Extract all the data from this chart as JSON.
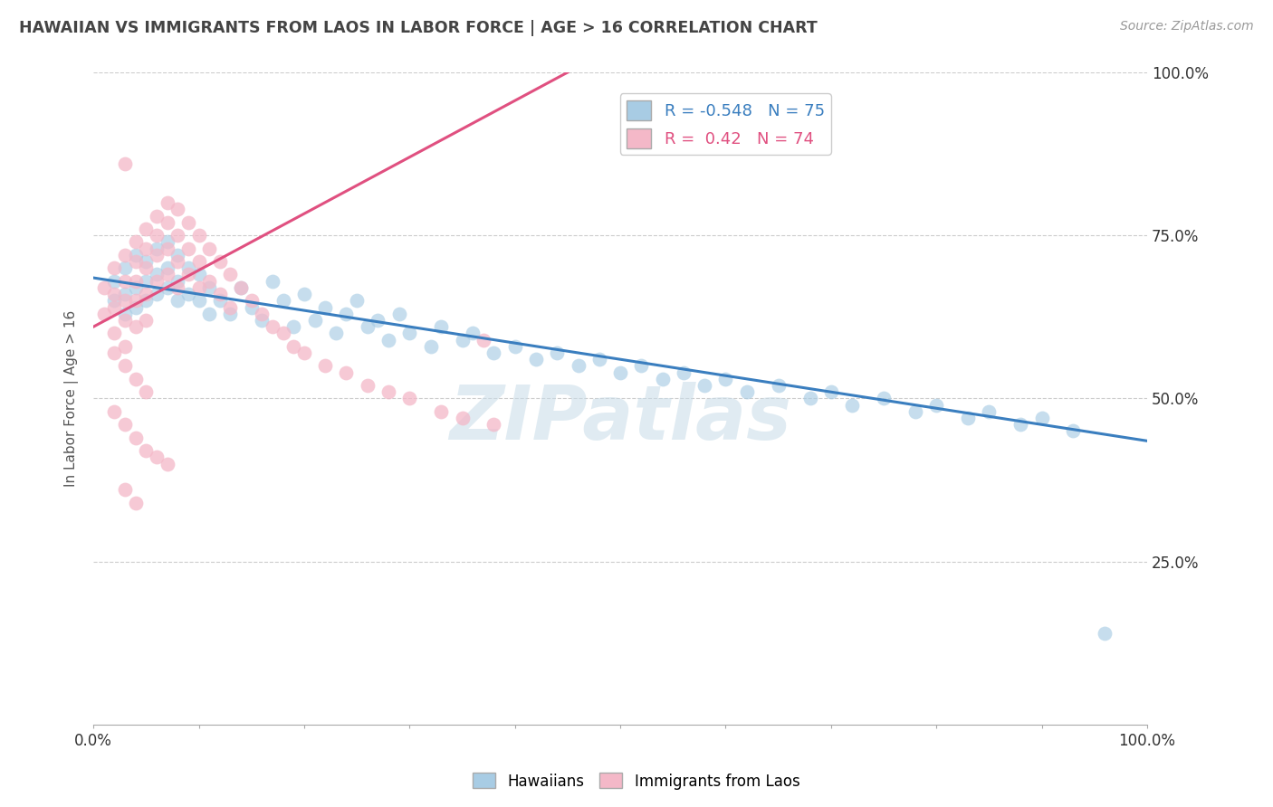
{
  "title": "HAWAIIAN VS IMMIGRANTS FROM LAOS IN LABOR FORCE | AGE > 16 CORRELATION CHART",
  "source": "Source: ZipAtlas.com",
  "ylabel": "In Labor Force | Age > 16",
  "watermark": "ZIPatlas",
  "blue_R": -0.548,
  "blue_N": 75,
  "pink_R": 0.42,
  "pink_N": 74,
  "blue_color": "#a8cce4",
  "pink_color": "#f4b8c8",
  "blue_line_color": "#3a7ebf",
  "pink_line_color": "#e05080",
  "legend_blue_label": "Hawaiians",
  "legend_pink_label": "Immigrants from Laos",
  "background_color": "#ffffff",
  "watermark_color": "#c8dce8",
  "title_color": "#444444",
  "source_color": "#999999",
  "ylabel_color": "#555555",
  "grid_color": "#cccccc",
  "tick_color": "#333333",
  "blue_scatter_x": [
    0.02,
    0.02,
    0.03,
    0.03,
    0.03,
    0.04,
    0.04,
    0.04,
    0.05,
    0.05,
    0.05,
    0.06,
    0.06,
    0.06,
    0.07,
    0.07,
    0.07,
    0.08,
    0.08,
    0.08,
    0.09,
    0.09,
    0.1,
    0.1,
    0.11,
    0.11,
    0.12,
    0.13,
    0.14,
    0.15,
    0.16,
    0.17,
    0.18,
    0.19,
    0.2,
    0.21,
    0.22,
    0.23,
    0.24,
    0.25,
    0.26,
    0.27,
    0.28,
    0.29,
    0.3,
    0.32,
    0.33,
    0.35,
    0.36,
    0.38,
    0.4,
    0.42,
    0.44,
    0.46,
    0.48,
    0.5,
    0.52,
    0.54,
    0.56,
    0.58,
    0.6,
    0.62,
    0.65,
    0.68,
    0.7,
    0.72,
    0.75,
    0.78,
    0.8,
    0.83,
    0.85,
    0.88,
    0.9,
    0.93,
    0.96
  ],
  "blue_scatter_y": [
    0.68,
    0.65,
    0.7,
    0.66,
    0.63,
    0.72,
    0.67,
    0.64,
    0.71,
    0.68,
    0.65,
    0.73,
    0.69,
    0.66,
    0.74,
    0.7,
    0.67,
    0.72,
    0.68,
    0.65,
    0.7,
    0.66,
    0.69,
    0.65,
    0.67,
    0.63,
    0.65,
    0.63,
    0.67,
    0.64,
    0.62,
    0.68,
    0.65,
    0.61,
    0.66,
    0.62,
    0.64,
    0.6,
    0.63,
    0.65,
    0.61,
    0.62,
    0.59,
    0.63,
    0.6,
    0.58,
    0.61,
    0.59,
    0.6,
    0.57,
    0.58,
    0.56,
    0.57,
    0.55,
    0.56,
    0.54,
    0.55,
    0.53,
    0.54,
    0.52,
    0.53,
    0.51,
    0.52,
    0.5,
    0.51,
    0.49,
    0.5,
    0.48,
    0.49,
    0.47,
    0.48,
    0.46,
    0.47,
    0.45,
    0.14
  ],
  "pink_scatter_x": [
    0.01,
    0.01,
    0.02,
    0.02,
    0.02,
    0.02,
    0.03,
    0.03,
    0.03,
    0.03,
    0.03,
    0.04,
    0.04,
    0.04,
    0.04,
    0.04,
    0.05,
    0.05,
    0.05,
    0.05,
    0.05,
    0.06,
    0.06,
    0.06,
    0.06,
    0.07,
    0.07,
    0.07,
    0.07,
    0.08,
    0.08,
    0.08,
    0.08,
    0.09,
    0.09,
    0.09,
    0.1,
    0.1,
    0.1,
    0.11,
    0.11,
    0.12,
    0.12,
    0.13,
    0.13,
    0.14,
    0.15,
    0.16,
    0.17,
    0.18,
    0.19,
    0.2,
    0.22,
    0.24,
    0.26,
    0.28,
    0.3,
    0.33,
    0.35,
    0.38,
    0.02,
    0.03,
    0.04,
    0.05,
    0.02,
    0.03,
    0.04,
    0.05,
    0.06,
    0.07,
    0.03,
    0.04,
    0.03,
    0.37
  ],
  "pink_scatter_y": [
    0.67,
    0.63,
    0.7,
    0.66,
    0.64,
    0.6,
    0.72,
    0.68,
    0.65,
    0.62,
    0.58,
    0.74,
    0.71,
    0.68,
    0.65,
    0.61,
    0.76,
    0.73,
    0.7,
    0.66,
    0.62,
    0.78,
    0.75,
    0.72,
    0.68,
    0.8,
    0.77,
    0.73,
    0.69,
    0.79,
    0.75,
    0.71,
    0.67,
    0.77,
    0.73,
    0.69,
    0.75,
    0.71,
    0.67,
    0.73,
    0.68,
    0.71,
    0.66,
    0.69,
    0.64,
    0.67,
    0.65,
    0.63,
    0.61,
    0.6,
    0.58,
    0.57,
    0.55,
    0.54,
    0.52,
    0.51,
    0.5,
    0.48,
    0.47,
    0.46,
    0.57,
    0.55,
    0.53,
    0.51,
    0.48,
    0.46,
    0.44,
    0.42,
    0.41,
    0.4,
    0.36,
    0.34,
    0.86,
    0.59
  ],
  "blue_line_x": [
    0.0,
    1.0
  ],
  "blue_line_y": [
    0.685,
    0.435
  ],
  "pink_line_x": [
    0.0,
    0.45
  ],
  "pink_line_y": [
    0.61,
    1.0
  ],
  "xtick_positions": [
    0.0,
    0.1,
    0.2,
    0.3,
    0.4,
    0.5,
    0.6,
    0.7,
    0.8,
    0.9,
    1.0
  ],
  "ytick_positions": [
    0.25,
    0.5,
    0.75,
    1.0
  ],
  "ytick_right_labels": [
    "25.0%",
    "50.0%",
    "75.0%",
    "100.0%"
  ]
}
